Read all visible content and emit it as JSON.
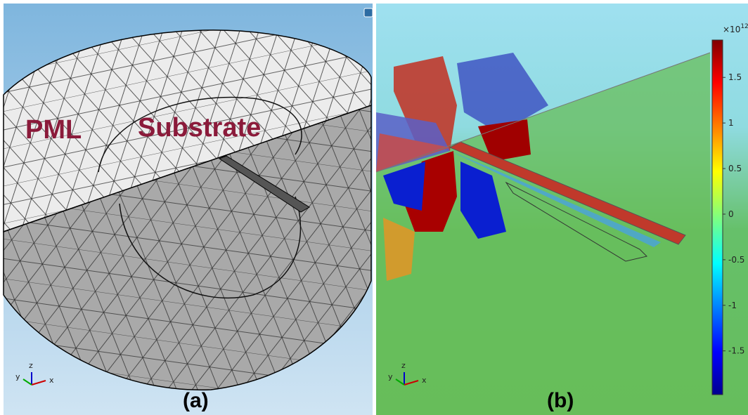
{
  "panel_a": {
    "labels": {
      "pml": "PML",
      "substrate": "Substrate"
    },
    "caption": "(a)",
    "axes": [
      "y",
      "z",
      "x"
    ]
  },
  "panel_b": {
    "caption": "(b)",
    "axes": [
      "y",
      "z",
      "x"
    ],
    "colorbar": {
      "multiplier": "×10",
      "exponent": "12",
      "range": [
        -1.98,
        1.91
      ],
      "ticks": [
        1.5,
        1,
        0.5,
        0,
        -0.5,
        -1,
        -1.5
      ]
    }
  }
}
